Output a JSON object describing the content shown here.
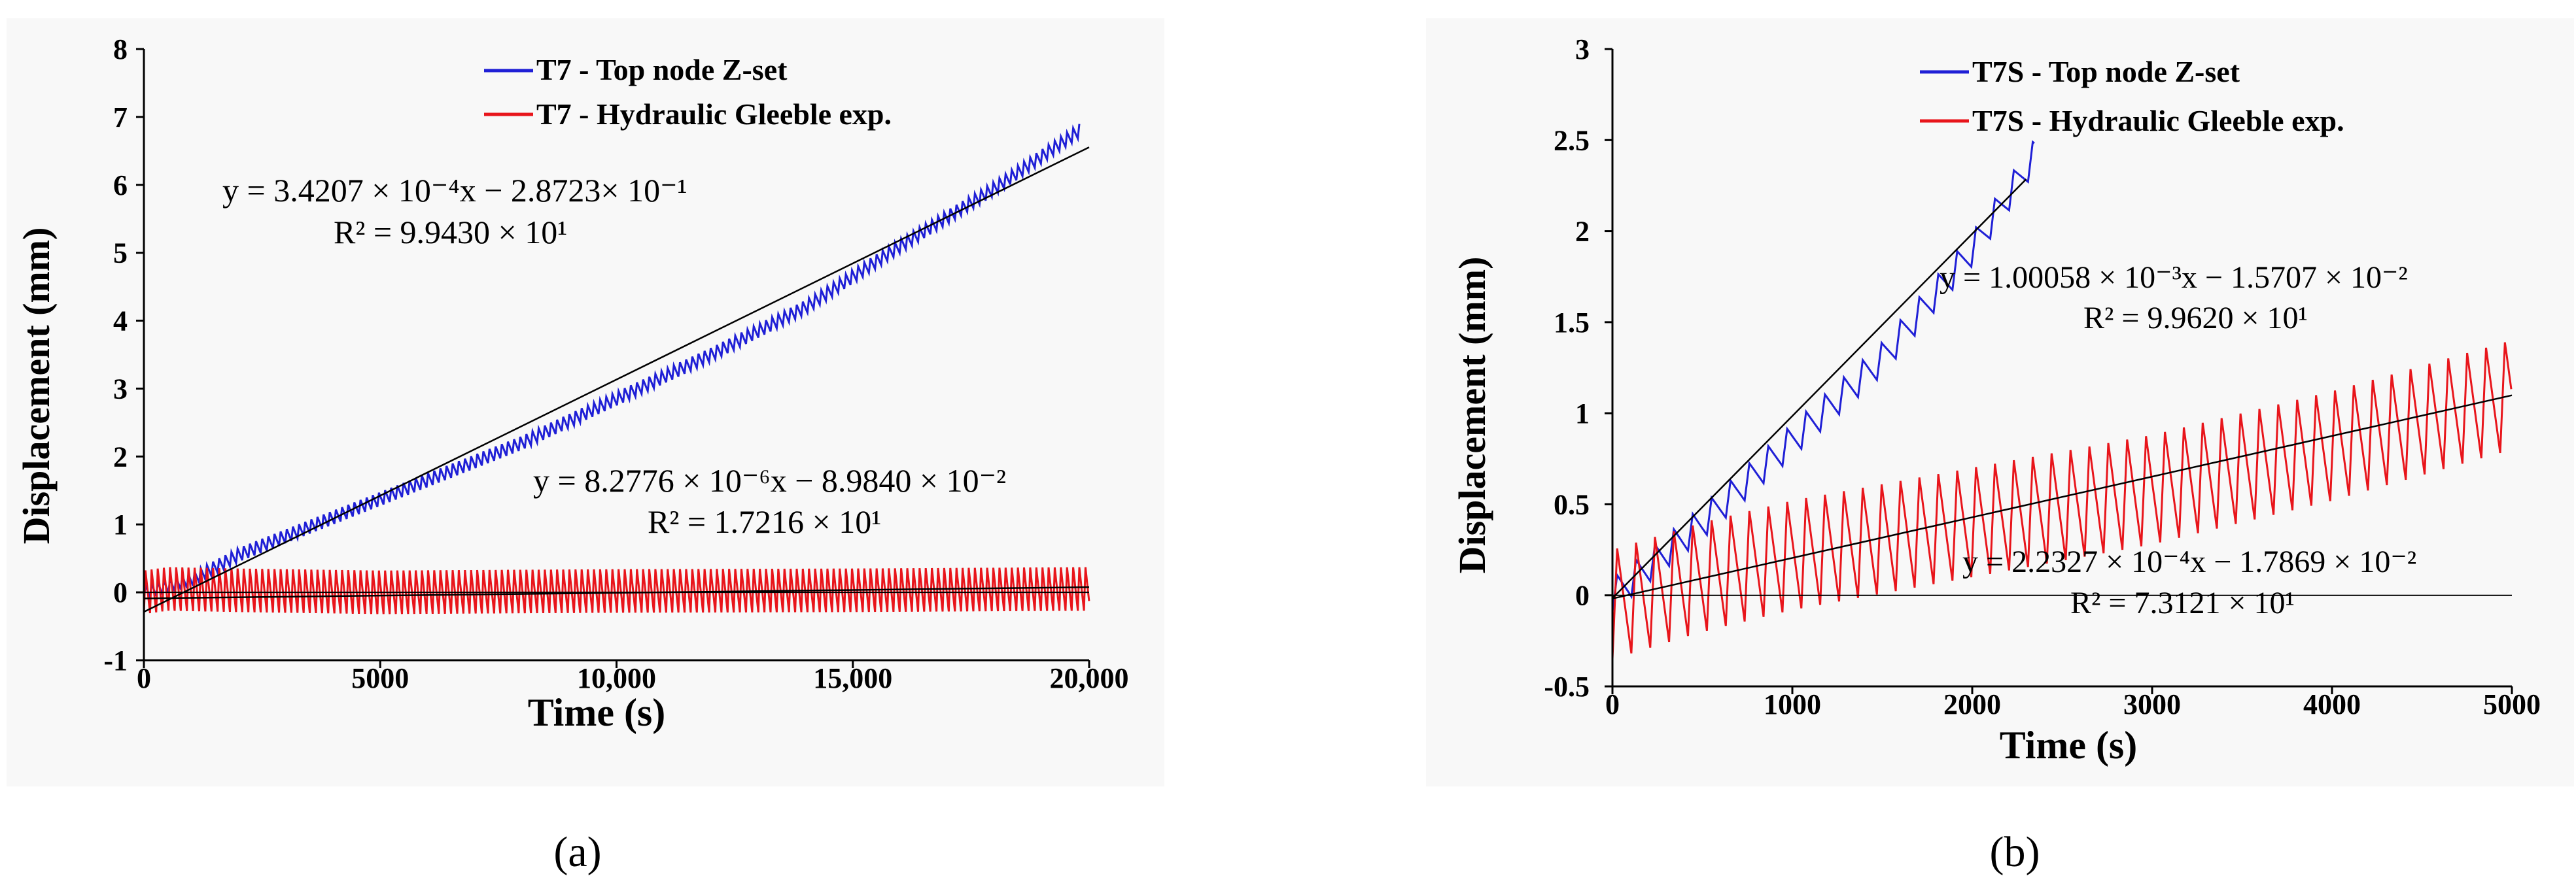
{
  "chart_data": [
    {
      "type": "line",
      "panel_label": "(a)",
      "xlabel": "Time (s)",
      "ylabel": "Displacement (mm)",
      "xlim": [
        0,
        20000
      ],
      "ylim": [
        -1,
        8
      ],
      "x_ticks": [
        0,
        5000,
        10000,
        15000,
        20000
      ],
      "x_tick_labels": [
        "0",
        "5000",
        "10,000",
        "15,000",
        "20,000"
      ],
      "y_ticks": [
        -1,
        0,
        1,
        2,
        3,
        4,
        5,
        6,
        7,
        8
      ],
      "y_tick_labels": [
        "-1",
        "0",
        "1",
        "2",
        "3",
        "4",
        "5",
        "6",
        "7",
        "8"
      ],
      "legend_position": "top-right",
      "series": [
        {
          "name": "T7 - Top node Z-set",
          "color": "#1f1fd6",
          "points": [
            [
              0,
              0
            ],
            [
              1000,
              0.18
            ],
            [
              2000,
              0.55
            ],
            [
              4000,
              1.1
            ],
            [
              6000,
              1.65
            ],
            [
              8000,
              2.2
            ],
            [
              10000,
              2.85
            ],
            [
              12000,
              3.5
            ],
            [
              14000,
              4.2
            ],
            [
              16000,
              5.1
            ],
            [
              18000,
              5.95
            ],
            [
              19800,
              6.8
            ]
          ],
          "oscillation_amplitude": 0.1,
          "oscillation_period": 130
        },
        {
          "name": "T7 - Hydraulic Gleeble exp.",
          "color": "#e8151b",
          "points": [
            [
              0,
              0
            ],
            [
              500,
              0.05
            ],
            [
              2000,
              0.03
            ],
            [
              5000,
              0.0
            ],
            [
              10000,
              0.02
            ],
            [
              15000,
              0.03
            ],
            [
              20000,
              0.05
            ]
          ],
          "oscillation_amplitude": 0.32,
          "oscillation_period": 130
        }
      ],
      "fits": [
        {
          "color": "#000000",
          "slope": 0.00034207,
          "intercept": -0.28723,
          "x_range": [
            0,
            20000
          ],
          "equation": "y = 3.4207 × 10⁻⁴x − 2.8723× 10⁻¹",
          "r2": "R² = 9.9430 × 10¹"
        },
        {
          "color": "#000000",
          "slope": 8.2776e-06,
          "intercept": -0.08984,
          "x_range": [
            0,
            20000
          ],
          "equation": "y = 8.2776 × 10⁻⁶x − 8.9840 × 10⁻²",
          "r2": "R² = 1.7216 × 10¹"
        }
      ]
    },
    {
      "type": "line",
      "panel_label": "(b)",
      "xlabel": "Time (s)",
      "ylabel": "Displacement (mm)",
      "xlim": [
        0,
        5000
      ],
      "ylim": [
        -0.5,
        3
      ],
      "x_ticks": [
        0,
        1000,
        2000,
        3000,
        4000,
        5000
      ],
      "x_tick_labels": [
        "0",
        "1000",
        "2000",
        "3000",
        "4000",
        "5000"
      ],
      "y_ticks": [
        -0.5,
        0,
        0.5,
        1,
        1.5,
        2,
        2.5,
        3
      ],
      "y_tick_labels": [
        "-0.5",
        "0",
        "0.5",
        "1",
        "1.5",
        "2",
        "2.5",
        "3"
      ],
      "legend_position": "top-right",
      "series": [
        {
          "name": "T7S - Top node Z-set",
          "color": "#1f1fd6",
          "points": [
            [
              0,
              0
            ],
            [
              500,
              0.4
            ],
            [
              1000,
              0.85
            ],
            [
              1500,
              1.3
            ],
            [
              2000,
              1.9
            ],
            [
              2350,
              2.42
            ]
          ],
          "oscillation_amplitude": 0.09,
          "oscillation_period": 105
        },
        {
          "name": "T7S - Hydraulic Gleeble exp.",
          "color": "#e8151b",
          "points": [
            [
              0,
              -0.05
            ],
            [
              500,
              0.1
            ],
            [
              1000,
              0.22
            ],
            [
              2000,
              0.4
            ],
            [
              3000,
              0.58
            ],
            [
              4000,
              0.82
            ],
            [
              5000,
              1.1
            ]
          ],
          "oscillation_amplitude": 0.3,
          "oscillation_period": 105
        }
      ],
      "fits": [
        {
          "color": "#000000",
          "slope": 0.00100058,
          "intercept": -0.015707,
          "x_range": [
            0,
            2300
          ],
          "equation": "y = 1.00058 × 10⁻³x − 1.5707 × 10⁻²",
          "r2": "R² = 9.9620 × 10¹"
        },
        {
          "color": "#000000",
          "slope": 0.00022327,
          "intercept": -0.017869,
          "x_range": [
            0,
            5000
          ],
          "equation": "y = 2.2327 × 10⁻⁴x − 1.7869 × 10⁻²",
          "r2": "R² = 7.3121 × 10¹"
        }
      ]
    }
  ]
}
